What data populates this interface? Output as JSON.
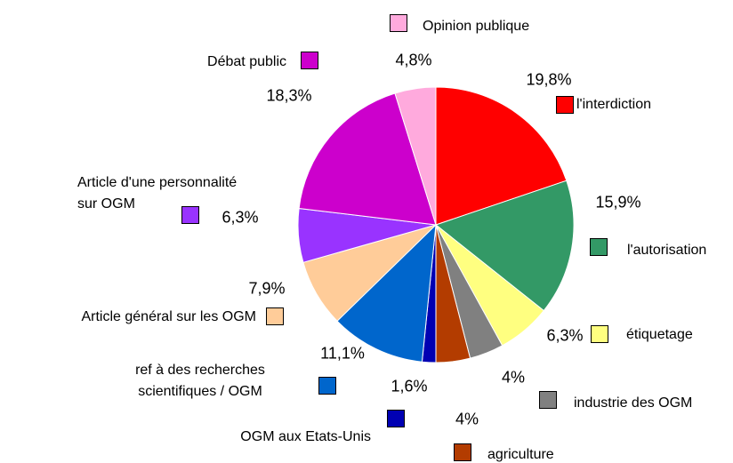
{
  "chart_data": {
    "type": "pie",
    "categories": [
      "l'interdiction",
      "l'autorisation",
      "étiquetage",
      "industrie des OGM",
      "agriculture",
      "OGM aux Etats-Unis",
      "ref à des recherches scientifiques / OGM",
      "Article général sur les OGM",
      "Article d'une personnalité sur OGM",
      "Débat public",
      "Opinion publique"
    ],
    "values": [
      19.8,
      15.9,
      6.3,
      4,
      4,
      1.6,
      11.1,
      7.9,
      6.3,
      18.3,
      4.8
    ],
    "value_labels": [
      "19,8%",
      "15,9%",
      "6,3%",
      "4%",
      "4%",
      "1,6%",
      "11,1%",
      "7,9%",
      "6,3%",
      "18,3%",
      "4,8%"
    ],
    "colors": [
      "#ff0000",
      "#339966",
      "#ffff80",
      "#808080",
      "#b33c00",
      "#0000b3",
      "#0066cc",
      "#ffcc99",
      "#9933ff",
      "#cc00cc",
      "#ffaadd"
    ]
  }
}
